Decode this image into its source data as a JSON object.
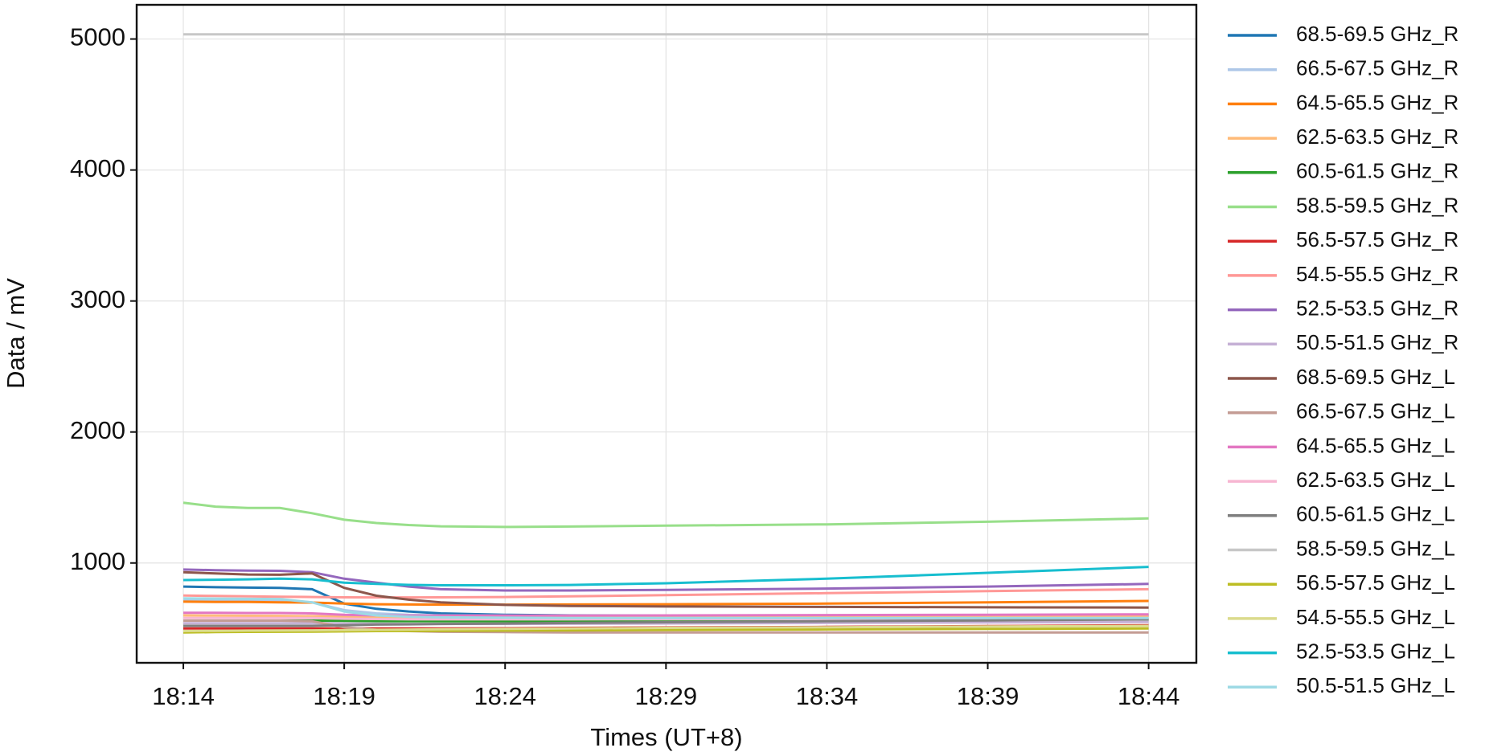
{
  "chart_data": {
    "type": "line",
    "xlabel": "Times (UT+8)",
    "ylabel": "Data / mV",
    "x": [
      "18:14",
      "18:15",
      "18:16",
      "18:17",
      "18:18",
      "18:19",
      "18:20",
      "18:21",
      "18:22",
      "18:24",
      "18:26",
      "18:29",
      "18:34",
      "18:39",
      "18:44"
    ],
    "xlim": [
      "18:12:33",
      "18:45:29"
    ],
    "xticks": [
      "18:14",
      "18:19",
      "18:24",
      "18:29",
      "18:34",
      "18:39",
      "18:44"
    ],
    "ylim": [
      238,
      5261
    ],
    "yticks": [
      1000,
      2000,
      3000,
      4000,
      5000
    ],
    "grid": true,
    "legend": "outside right",
    "series": [
      {
        "name": "68.5-69.5 GHz_R",
        "color": "#1f77b4",
        "values": [
          820,
          815,
          812,
          810,
          800,
          690,
          650,
          630,
          615,
          605,
          600,
          598,
          595,
          595,
          598
        ]
      },
      {
        "name": "66.5-67.5 GHz_R",
        "color": "#aec7e8",
        "values": [
          720,
          718,
          716,
          715,
          700,
          640,
          615,
          605,
          600,
          598,
          596,
          595,
          595,
          596,
          598
        ]
      },
      {
        "name": "64.5-65.5 GHz_R",
        "color": "#ff7f0e",
        "values": [
          705,
          703,
          702,
          700,
          698,
          690,
          685,
          683,
          682,
          682,
          683,
          685,
          690,
          700,
          710
        ]
      },
      {
        "name": "62.5-63.5 GHz_R",
        "color": "#ffbb78",
        "values": [
          600,
          598,
          597,
          596,
          594,
          590,
          585,
          583,
          582,
          582,
          582,
          583,
          585,
          590,
          595
        ]
      },
      {
        "name": "60.5-61.5 GHz_R",
        "color": "#2ca02c",
        "values": [
          560,
          560,
          560,
          560,
          560,
          558,
          556,
          555,
          555,
          555,
          556,
          557,
          560,
          565,
          570
        ]
      },
      {
        "name": "58.5-59.5 GHz_R",
        "color": "#98df8a",
        "values": [
          1460,
          1430,
          1420,
          1420,
          1380,
          1330,
          1305,
          1290,
          1280,
          1275,
          1278,
          1285,
          1295,
          1315,
          1340
        ]
      },
      {
        "name": "56.5-57.5 GHz_R",
        "color": "#d62728",
        "values": [
          500,
          500,
          500,
          500,
          500,
          500,
          500,
          500,
          500,
          502,
          505,
          508,
          512,
          518,
          525
        ]
      },
      {
        "name": "54.5-55.5 GHz_R",
        "color": "#ff9896",
        "values": [
          752,
          748,
          745,
          742,
          740,
          738,
          737,
          737,
          738,
          740,
          745,
          755,
          770,
          785,
          800
        ]
      },
      {
        "name": "52.5-53.5 GHz_R",
        "color": "#9467bd",
        "values": [
          950,
          945,
          942,
          940,
          930,
          880,
          850,
          820,
          800,
          790,
          790,
          795,
          805,
          820,
          840
        ]
      },
      {
        "name": "50.5-51.5 GHz_R",
        "color": "#c5b0d5",
        "values": [
          540,
          540,
          540,
          540,
          540,
          538,
          536,
          535,
          535,
          535,
          536,
          538,
          542,
          546,
          550
        ]
      },
      {
        "name": "68.5-69.5 GHz_L",
        "color": "#8c564b",
        "values": [
          930,
          920,
          912,
          910,
          920,
          810,
          750,
          720,
          700,
          680,
          672,
          668,
          665,
          662,
          660
        ]
      },
      {
        "name": "66.5-67.5 GHz_L",
        "color": "#c49c94",
        "values": [
          560,
          560,
          560,
          560,
          555,
          510,
          490,
          480,
          475,
          472,
          470,
          470,
          470,
          470,
          470
        ]
      },
      {
        "name": "64.5-65.5 GHz_L",
        "color": "#e377c2",
        "values": [
          620,
          620,
          618,
          618,
          615,
          605,
          600,
          598,
          598,
          598,
          598,
          600,
          602,
          605,
          608
        ]
      },
      {
        "name": "62.5-63.5 GHz_L",
        "color": "#f7b6d2",
        "values": [
          580,
          580,
          580,
          580,
          580,
          575,
          572,
          570,
          570,
          570,
          570,
          571,
          572,
          574,
          575
        ]
      },
      {
        "name": "60.5-61.5 GHz_L",
        "color": "#7f7f7f",
        "values": [
          520,
          520,
          520,
          520,
          520,
          525,
          530,
          532,
          535,
          538,
          542,
          548,
          555,
          562,
          570
        ]
      },
      {
        "name": "58.5-59.5 GHz_L",
        "color": "#c7c7c7",
        "values": [
          5035,
          5035,
          5035,
          5035,
          5035,
          5035,
          5035,
          5035,
          5035,
          5035,
          5035,
          5035,
          5035,
          5035,
          5035
        ]
      },
      {
        "name": "56.5-57.5 GHz_L",
        "color": "#bcbd22",
        "values": [
          470,
          472,
          474,
          475,
          476,
          478,
          480,
          481,
          482,
          484,
          486,
          489,
          493,
          497,
          500
        ]
      },
      {
        "name": "54.5-55.5 GHz_L",
        "color": "#dbdb8d",
        "values": [
          480,
          482,
          484,
          485,
          486,
          488,
          490,
          492,
          494,
          497,
          500,
          505,
          510,
          515,
          520
        ]
      },
      {
        "name": "52.5-53.5 GHz_L",
        "color": "#17becf",
        "values": [
          870,
          872,
          875,
          880,
          875,
          850,
          840,
          833,
          830,
          830,
          832,
          845,
          880,
          925,
          970
        ]
      },
      {
        "name": "50.5-51.5 GHz_L",
        "color": "#9edae5",
        "values": [
          730,
          728,
          726,
          725,
          700,
          630,
          600,
          590,
          585,
          582,
          580,
          580,
          580,
          580,
          580
        ]
      }
    ]
  }
}
